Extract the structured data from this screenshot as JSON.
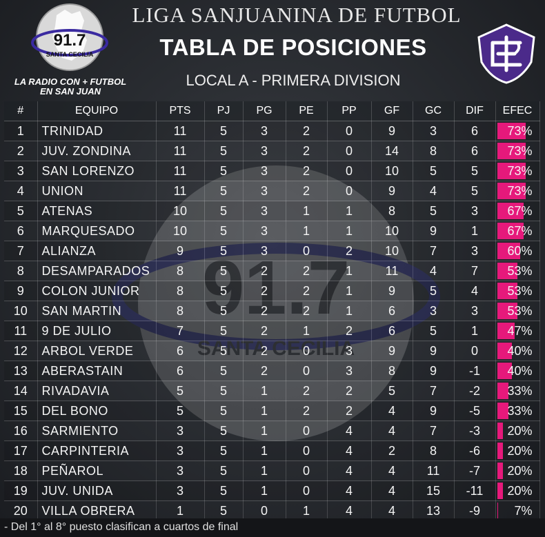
{
  "radio": {
    "frequency": "91.7",
    "station": "SANTA CECILIA",
    "tagline_line1": "LA RADIO CON + FUTBOL",
    "tagline_line2": "EN SAN JUAN"
  },
  "header": {
    "league": "LIGA SANJUANINA DE FUTBOL",
    "title": "TABLA DE POSICIONES",
    "division": "LOCAL A - PRIMERA DIVISION"
  },
  "colors": {
    "accent": "#e6197b",
    "logo_purple": "#4b2a8a"
  },
  "columns": [
    "#",
    "EQUIPO",
    "PTS",
    "PJ",
    "PG",
    "PE",
    "PP",
    "GF",
    "GC",
    "DIF",
    "EFEC"
  ],
  "rows": [
    {
      "pos": "1",
      "team": "TRINIDAD",
      "pts": "11",
      "pj": "5",
      "pg": "3",
      "pe": "2",
      "pp": "0",
      "gf": "9",
      "gc": "3",
      "dif": "6",
      "efec": "73%",
      "efec_value": 73
    },
    {
      "pos": "2",
      "team": "JUV. ZONDINA",
      "pts": "11",
      "pj": "5",
      "pg": "3",
      "pe": "2",
      "pp": "0",
      "gf": "14",
      "gc": "8",
      "dif": "6",
      "efec": "73%",
      "efec_value": 73
    },
    {
      "pos": "3",
      "team": "SAN LORENZO",
      "pts": "11",
      "pj": "5",
      "pg": "3",
      "pe": "2",
      "pp": "0",
      "gf": "10",
      "gc": "5",
      "dif": "5",
      "efec": "73%",
      "efec_value": 73
    },
    {
      "pos": "4",
      "team": "UNION",
      "pts": "11",
      "pj": "5",
      "pg": "3",
      "pe": "2",
      "pp": "0",
      "gf": "9",
      "gc": "4",
      "dif": "5",
      "efec": "73%",
      "efec_value": 73
    },
    {
      "pos": "5",
      "team": "ATENAS",
      "pts": "10",
      "pj": "5",
      "pg": "3",
      "pe": "1",
      "pp": "1",
      "gf": "8",
      "gc": "5",
      "dif": "3",
      "efec": "67%",
      "efec_value": 67
    },
    {
      "pos": "6",
      "team": "MARQUESADO",
      "pts": "10",
      "pj": "5",
      "pg": "3",
      "pe": "1",
      "pp": "1",
      "gf": "10",
      "gc": "9",
      "dif": "1",
      "efec": "67%",
      "efec_value": 67
    },
    {
      "pos": "7",
      "team": "ALIANZA",
      "pts": "9",
      "pj": "5",
      "pg": "3",
      "pe": "0",
      "pp": "2",
      "gf": "10",
      "gc": "7",
      "dif": "3",
      "efec": "60%",
      "efec_value": 60
    },
    {
      "pos": "8",
      "team": "DESAMPARADOS",
      "pts": "8",
      "pj": "5",
      "pg": "2",
      "pe": "2",
      "pp": "1",
      "gf": "11",
      "gc": "4",
      "dif": "7",
      "efec": "53%",
      "efec_value": 53
    },
    {
      "pos": "9",
      "team": "COLON JUNIOR",
      "pts": "8",
      "pj": "5",
      "pg": "2",
      "pe": "2",
      "pp": "1",
      "gf": "9",
      "gc": "5",
      "dif": "4",
      "efec": "53%",
      "efec_value": 53
    },
    {
      "pos": "10",
      "team": "SAN MARTIN",
      "pts": "8",
      "pj": "5",
      "pg": "2",
      "pe": "2",
      "pp": "1",
      "gf": "6",
      "gc": "3",
      "dif": "3",
      "efec": "53%",
      "efec_value": 53
    },
    {
      "pos": "11",
      "team": "9 DE JULIO",
      "pts": "7",
      "pj": "5",
      "pg": "2",
      "pe": "1",
      "pp": "2",
      "gf": "6",
      "gc": "5",
      "dif": "1",
      "efec": "47%",
      "efec_value": 47
    },
    {
      "pos": "12",
      "team": "ARBOL VERDE",
      "pts": "6",
      "pj": "5",
      "pg": "2",
      "pe": "0",
      "pp": "3",
      "gf": "9",
      "gc": "9",
      "dif": "0",
      "efec": "40%",
      "efec_value": 40
    },
    {
      "pos": "13",
      "team": "ABERASTAIN",
      "pts": "6",
      "pj": "5",
      "pg": "2",
      "pe": "0",
      "pp": "3",
      "gf": "8",
      "gc": "9",
      "dif": "-1",
      "efec": "40%",
      "efec_value": 40
    },
    {
      "pos": "14",
      "team": "RIVADAVIA",
      "pts": "5",
      "pj": "5",
      "pg": "1",
      "pe": "2",
      "pp": "2",
      "gf": "5",
      "gc": "7",
      "dif": "-2",
      "efec": "33%",
      "efec_value": 33
    },
    {
      "pos": "15",
      "team": "DEL BONO",
      "pts": "5",
      "pj": "5",
      "pg": "1",
      "pe": "2",
      "pp": "2",
      "gf": "4",
      "gc": "9",
      "dif": "-5",
      "efec": "33%",
      "efec_value": 33
    },
    {
      "pos": "16",
      "team": "SARMIENTO",
      "pts": "3",
      "pj": "5",
      "pg": "1",
      "pe": "0",
      "pp": "4",
      "gf": "4",
      "gc": "7",
      "dif": "-3",
      "efec": "20%",
      "efec_value": 20
    },
    {
      "pos": "17",
      "team": "CARPINTERIA",
      "pts": "3",
      "pj": "5",
      "pg": "1",
      "pe": "0",
      "pp": "4",
      "gf": "2",
      "gc": "8",
      "dif": "-6",
      "efec": "20%",
      "efec_value": 20
    },
    {
      "pos": "18",
      "team": "PEÑAROL",
      "pts": "3",
      "pj": "5",
      "pg": "1",
      "pe": "0",
      "pp": "4",
      "gf": "4",
      "gc": "11",
      "dif": "-7",
      "efec": "20%",
      "efec_value": 20
    },
    {
      "pos": "19",
      "team": "JUV. UNIDA",
      "pts": "3",
      "pj": "5",
      "pg": "1",
      "pe": "0",
      "pp": "4",
      "gf": "4",
      "gc": "15",
      "dif": "-11",
      "efec": "20%",
      "efec_value": 20
    },
    {
      "pos": "20",
      "team": "VILLA OBRERA",
      "pts": "1",
      "pj": "5",
      "pg": "0",
      "pe": "1",
      "pp": "4",
      "gf": "4",
      "gc": "13",
      "dif": "-9",
      "efec": "7%",
      "efec_value": 7
    }
  ],
  "footnote": "- Del 1° al 8° puesto clasifican a cuartos de final"
}
